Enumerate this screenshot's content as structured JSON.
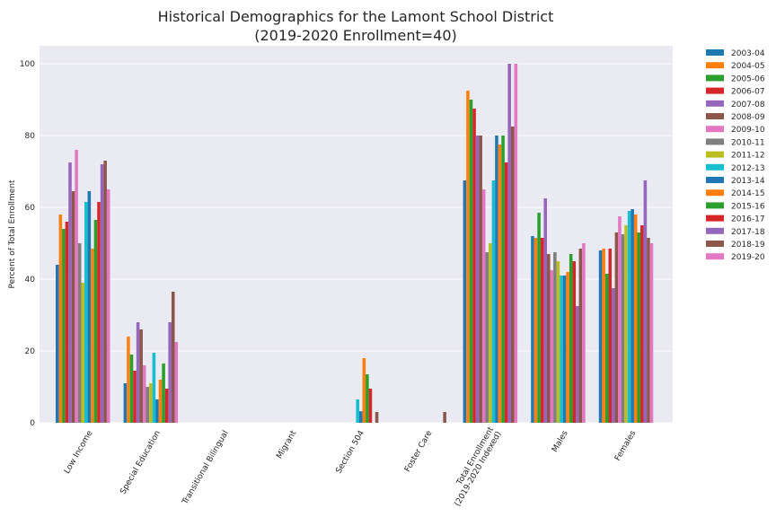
{
  "chart_data": {
    "type": "bar",
    "title_line1": "Historical Demographics for the Lamont School District",
    "title_line2": "(2019-2020 Enrollment=40)",
    "ylabel": "Percent of Total Enrollment",
    "xlabel": "",
    "ylim": [
      0,
      105
    ],
    "yticks": [
      "0",
      "20",
      "40",
      "60",
      "80",
      "100"
    ],
    "grid": true,
    "legend_position": "outside-top-right",
    "categories": [
      "Low Income",
      "Special Education",
      "Transitional Bilingual",
      "Migrant",
      "Section 504",
      "Foster Care",
      "Total Enrollment\n(2019-2020 Indexed)",
      "Males",
      "Females"
    ],
    "category_labels": [
      [
        "Low Income"
      ],
      [
        "Special Education"
      ],
      [
        "Transitional Bilingual"
      ],
      [
        "Migrant"
      ],
      [
        "Section 504"
      ],
      [
        "Foster Care"
      ],
      [
        "Total Enrollment",
        "(2019-2020 Indexed)"
      ],
      [
        "Males"
      ],
      [
        "Females"
      ]
    ],
    "series": [
      {
        "name": "2003-04",
        "color": "#1f77b4",
        "values": [
          44,
          11,
          0,
          0,
          0,
          0,
          67.5,
          52,
          48
        ]
      },
      {
        "name": "2004-05",
        "color": "#ff7f0e",
        "values": [
          58,
          24,
          0,
          0,
          0,
          0,
          92.5,
          51.5,
          48.5
        ]
      },
      {
        "name": "2005-06",
        "color": "#2ca02c",
        "values": [
          54,
          19,
          0,
          0,
          0,
          0,
          90,
          58.5,
          41.5
        ]
      },
      {
        "name": "2006-07",
        "color": "#d62728",
        "values": [
          56,
          14.5,
          0,
          0,
          0,
          0,
          87.5,
          51.5,
          48.5
        ]
      },
      {
        "name": "2007-08",
        "color": "#9467bd",
        "values": [
          72.5,
          28,
          0,
          0,
          0,
          0,
          80,
          62.5,
          37.5
        ]
      },
      {
        "name": "2008-09",
        "color": "#8c564b",
        "values": [
          64.5,
          26,
          0,
          0,
          0,
          0,
          80,
          47,
          53
        ]
      },
      {
        "name": "2009-10",
        "color": "#e377c2",
        "values": [
          76,
          16,
          0,
          0,
          0,
          0,
          65,
          42.5,
          57.5
        ]
      },
      {
        "name": "2010-11",
        "color": "#7f7f7f",
        "values": [
          50,
          10,
          0,
          0,
          0,
          0,
          47.5,
          47.5,
          52.5
        ]
      },
      {
        "name": "2011-12",
        "color": "#bcbd22",
        "values": [
          39,
          11,
          0,
          0,
          0,
          0,
          50,
          45,
          55
        ]
      },
      {
        "name": "2012-13",
        "color": "#17becf",
        "values": [
          61.5,
          19.5,
          0,
          0,
          6.5,
          0,
          67.5,
          41,
          59
        ]
      },
      {
        "name": "2013-14",
        "color": "#1f77b4",
        "values": [
          64.5,
          6.5,
          0,
          0,
          3.2,
          0,
          80,
          41,
          59.5
        ]
      },
      {
        "name": "2014-15",
        "color": "#ff7f0e",
        "values": [
          48.5,
          12,
          0,
          0,
          18,
          0,
          77.5,
          42,
          58
        ]
      },
      {
        "name": "2015-16",
        "color": "#2ca02c",
        "values": [
          56.5,
          16.5,
          0,
          0,
          13.5,
          0,
          80,
          47,
          53
        ]
      },
      {
        "name": "2016-17",
        "color": "#d62728",
        "values": [
          61.5,
          9.5,
          0,
          0,
          9.5,
          0,
          72.5,
          45,
          55
        ]
      },
      {
        "name": "2017-18",
        "color": "#9467bd",
        "values": [
          72,
          28,
          0,
          0,
          0,
          0,
          100,
          32.5,
          67.5
        ]
      },
      {
        "name": "2018-19",
        "color": "#8c564b",
        "values": [
          73,
          36.5,
          0,
          0,
          3,
          3,
          82.5,
          48.5,
          51.5
        ]
      },
      {
        "name": "2019-20",
        "color": "#e377c2",
        "values": [
          65,
          22.5,
          0,
          0,
          0,
          0,
          100,
          50,
          50
        ]
      }
    ]
  }
}
